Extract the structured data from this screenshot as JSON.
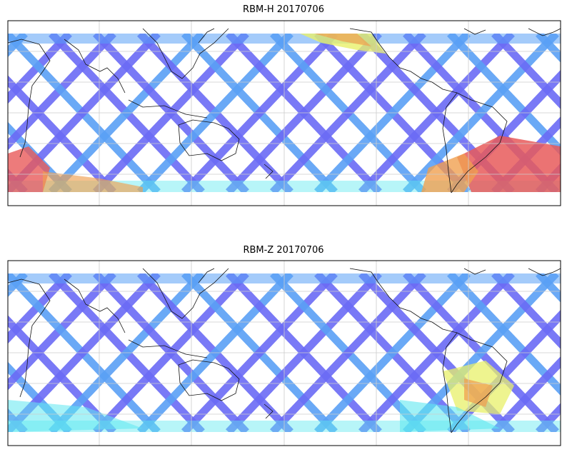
{
  "panels": [
    {
      "title": "RBM-H 20170706"
    },
    {
      "title": "RBM-Z 20170706"
    }
  ],
  "colors": {
    "background": "#ffffff",
    "frame": "#000000",
    "coastline": "#111111",
    "gridline": "#cccccc",
    "low": "#6a6af5",
    "mid_low": "#5aa0f5",
    "mid": "#5fe8f0",
    "mid_high": "#e8f06a",
    "high": "#f0a050",
    "very_high": "#e85a5a"
  },
  "map": {
    "projection": "equirectangular",
    "gridlines": true,
    "swath_pattern": "criss-cross satellite tracks"
  }
}
